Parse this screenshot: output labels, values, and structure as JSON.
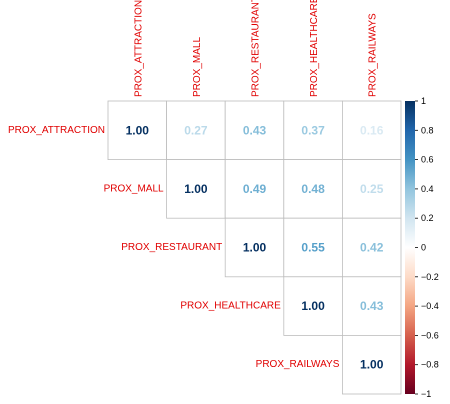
{
  "chart_data": {
    "type": "heatmap",
    "variables": [
      "PROX_ATTRACTION",
      "PROX_MALL",
      "PROX_RESTAURANT",
      "PROX_HEALTHCARE",
      "PROX_RAILWAYS"
    ],
    "layout": "upper-triangle",
    "matrix": [
      [
        1.0,
        0.27,
        0.43,
        0.37,
        0.16
      ],
      [
        null,
        1.0,
        0.49,
        0.48,
        0.25
      ],
      [
        null,
        null,
        1.0,
        0.55,
        0.42
      ],
      [
        null,
        null,
        null,
        1.0,
        0.43
      ],
      [
        null,
        null,
        null,
        null,
        1.0
      ]
    ],
    "value_labels": [
      [
        "1.00",
        "0.27",
        "0.43",
        "0.37",
        "0.16"
      ],
      [
        "",
        "1.00",
        "0.49",
        "0.48",
        "0.25"
      ],
      [
        "",
        "",
        "1.00",
        "0.55",
        "0.42"
      ],
      [
        "",
        "",
        "",
        "1.00",
        "0.43"
      ],
      [
        "",
        "",
        "",
        "",
        "1.00"
      ]
    ],
    "colorbar": {
      "range": [
        -1,
        1
      ],
      "ticks": [
        1,
        0.8,
        0.6,
        0.4,
        0.2,
        0,
        -0.2,
        -0.4,
        -0.6,
        -0.8,
        -1
      ],
      "tick_labels": [
        "1",
        "0.8",
        "0.6",
        "0.4",
        "0.2",
        "0",
        "−0.2",
        "−0.4",
        "−0.6",
        "−0.8",
        "−1"
      ],
      "colors": [
        "#67001f",
        "#b2182b",
        "#d6604d",
        "#f4a582",
        "#fddbc7",
        "#ffffff",
        "#d1e5f0",
        "#92c5de",
        "#4393c3",
        "#2166ac",
        "#053061"
      ]
    },
    "label_color": "#e00000"
  }
}
